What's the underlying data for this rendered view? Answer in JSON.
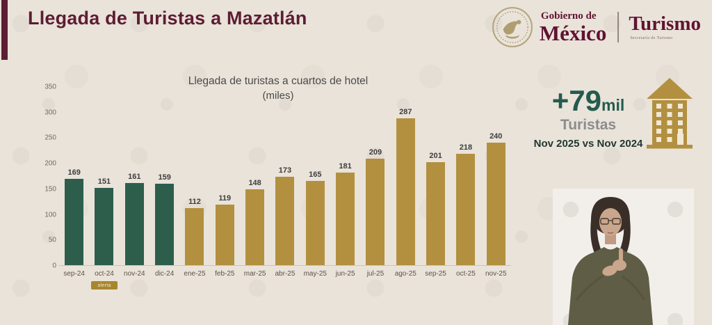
{
  "header": {
    "title": "Llegada de Turistas a Mazatlán"
  },
  "logo": {
    "gobierno_line1": "Gobierno de",
    "gobierno_line2": "México",
    "dependency": "Turismo",
    "dependency_sub": "Secretaría de Turismo"
  },
  "chart_data": {
    "type": "bar",
    "title": "Llegada de turistas a cuartos de hotel",
    "subtitle": "(miles)",
    "categories": [
      "sep-24",
      "oct-24",
      "nov-24",
      "dic-24",
      "ene-25",
      "feb-25",
      "mar-25",
      "abr-25",
      "may-25",
      "jun-25",
      "jul-25",
      "ago-25",
      "sep-25",
      "oct-25",
      "nov-25"
    ],
    "values": [
      169,
      151,
      161,
      159,
      112,
      119,
      148,
      173,
      165,
      181,
      209,
      287,
      201,
      218,
      240
    ],
    "bar_series": [
      "2024",
      "2024",
      "2024",
      "2024",
      "2025",
      "2025",
      "2025",
      "2025",
      "2025",
      "2025",
      "2025",
      "2025",
      "2025",
      "2025",
      "2025"
    ],
    "series_colors": {
      "2024": "#2d5e4c",
      "2025": "#b3903f"
    },
    "ylim": [
      0,
      350
    ],
    "yticks": [
      0,
      50,
      100,
      150,
      200,
      250,
      300,
      350
    ],
    "grid": false,
    "legend": "none",
    "annotation": {
      "category": "oct-24",
      "label": "alerta"
    }
  },
  "highlight": {
    "delta": "+79",
    "delta_unit": "mil",
    "label": "Turistas",
    "comparison": "Nov 2025 vs Nov 2024"
  },
  "colors": {
    "background": "#e9e3da",
    "accent_maroon": "#5d1d33",
    "bar_teal": "#2d5e4c",
    "bar_gold": "#b3903f",
    "highlight_green": "#235b4e"
  }
}
